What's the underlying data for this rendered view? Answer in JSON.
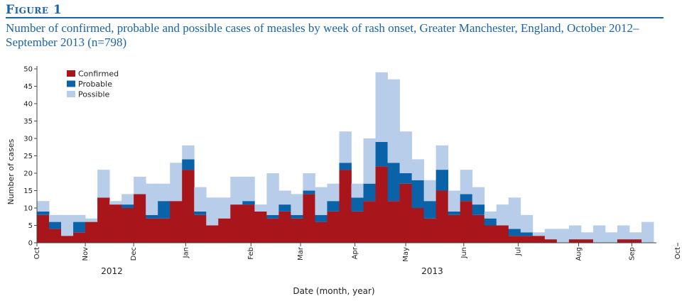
{
  "figure_label": "Figure 1",
  "title": "Number of confirmed, probable and possible cases of measles by week of rash onset, Greater Manchester, England, October 2012–September 2013 (n=798)",
  "chart_data": {
    "type": "bar",
    "stacked": true,
    "xlabel": "Date (month, year)",
    "ylabel": "Number of cases",
    "ylim": [
      0,
      50
    ],
    "yticks": [
      0,
      5,
      10,
      15,
      20,
      25,
      30,
      35,
      40,
      45,
      50
    ],
    "grid": false,
    "legend_position": "top-left",
    "x_month_labels": [
      {
        "label": "Oct",
        "week": 0
      },
      {
        "label": "Nov",
        "week": 4
      },
      {
        "label": "Dec",
        "week": 8
      },
      {
        "label": "Jan",
        "week": 12.3
      },
      {
        "label": "Feb",
        "week": 17.7
      },
      {
        "label": "Mar",
        "week": 21.8
      },
      {
        "label": "Apr",
        "week": 26.3
      },
      {
        "label": "May",
        "week": 30.5
      },
      {
        "label": "Jun",
        "week": 35.3
      },
      {
        "label": "Jul",
        "week": 39.8
      },
      {
        "label": "Aug",
        "week": 44.8
      },
      {
        "label": "Sep",
        "week": 49.2
      },
      {
        "label": "Oct",
        "week": 53
      }
    ],
    "year_labels": [
      {
        "label": "2012",
        "week": 6.2
      },
      {
        "label": "2013",
        "week": 32.7
      }
    ],
    "series": [
      {
        "name": "Confirmed",
        "color": "#a8151a",
        "values": [
          8,
          4,
          2,
          3,
          6,
          13,
          11,
          10,
          14,
          7,
          7,
          12,
          21,
          8,
          5,
          7,
          11,
          11,
          9,
          7,
          9,
          7,
          14,
          6,
          9,
          21,
          9,
          12,
          22,
          12,
          17,
          10,
          7,
          15,
          8,
          12,
          8,
          5,
          5,
          2,
          2,
          2,
          1,
          0,
          1,
          1,
          0,
          0,
          1,
          1,
          0
        ]
      },
      {
        "name": "Probable",
        "color": "#0a63a9",
        "values": [
          1,
          2,
          0,
          3,
          0,
          0,
          0,
          1,
          0,
          1,
          5,
          0,
          3,
          1,
          0,
          0,
          0,
          1,
          0,
          1,
          2,
          1,
          1,
          2,
          3,
          2,
          4,
          5,
          7,
          11,
          3,
          8,
          5,
          6,
          1,
          2,
          3,
          2,
          0,
          2,
          1,
          0,
          0,
          0,
          0,
          0,
          0,
          0,
          0,
          0,
          0
        ]
      },
      {
        "name": "Possible",
        "color": "#b7cde9",
        "values": [
          3,
          2,
          6,
          2,
          1,
          8,
          1,
          3,
          5,
          9,
          5,
          11,
          4,
          7,
          8,
          6,
          8,
          7,
          2,
          12,
          4,
          6,
          5,
          8,
          5,
          9,
          4,
          13,
          20,
          24,
          12,
          6,
          6,
          7,
          6,
          7,
          5,
          2,
          6,
          9,
          5,
          1,
          3,
          4,
          4,
          2,
          5,
          3,
          4,
          2,
          6
        ]
      }
    ]
  }
}
